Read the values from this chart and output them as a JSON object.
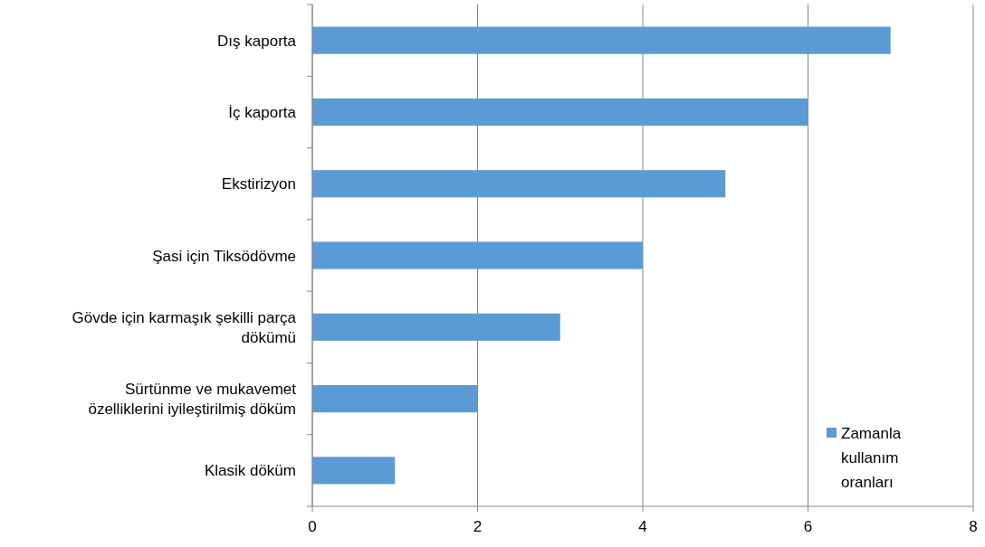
{
  "chart_data": {
    "type": "bar",
    "orientation": "horizontal",
    "categories": [
      "Dış kaporta",
      "İç kaporta",
      "Ekstirizyon",
      "Şasi için Tiksödövme",
      "Gövde için karmaşık şekilli parça dökümü",
      "Sürtünme ve mukavemet özelliklerini iyileştirilmiş döküm",
      "Klasik döküm"
    ],
    "series": [
      {
        "name": "Zamanla kullanım oranları",
        "color": "#5b9bd5",
        "values": [
          7,
          6,
          5,
          4,
          3,
          2,
          1
        ]
      }
    ],
    "xlim": [
      0,
      8
    ],
    "xticks": [
      0,
      2,
      4,
      6,
      8
    ],
    "grid": "x",
    "legend": "bottom right"
  }
}
